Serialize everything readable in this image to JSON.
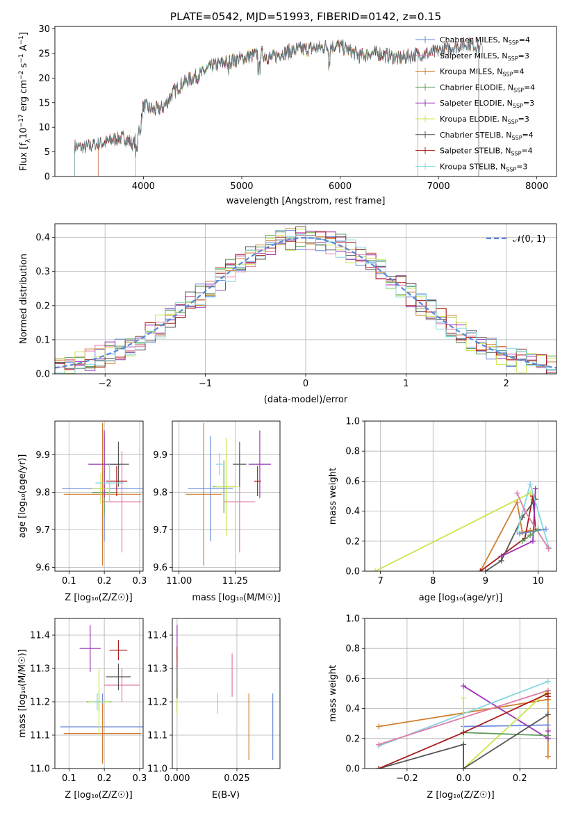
{
  "figure_title": "PLATE=0542, MJD=51993, FIBERID=0142, z=0.15",
  "colors": {
    "Chabrier MILES": "#6688dd",
    "Salpeter MILES": "#e07aa8",
    "Kroupa MILES": "#d27d2d",
    "Chabrier ELODIE": "#5f9e5f",
    "Salpeter ELODIE": "#9b34b5",
    "Kroupa ELODIE": "#c8e64a",
    "Chabrier STELIB": "#555555",
    "Salpeter STELIB": "#a81c1c",
    "Kroupa STELIB": "#84d6e0"
  },
  "chart_data": [
    {
      "id": "spectrum",
      "type": "line",
      "title": "PLATE=0542, MJD=51993, FIBERID=0142, z=0.15",
      "xlabel": "wavelength [Angstrom, rest frame]",
      "ylabel": "Flux [f_λ 10^-17 erg cm^-2 s^-1 A^-1]",
      "xlim": [
        3100,
        8200
      ],
      "ylim": [
        0,
        30.5
      ],
      "xticks": [
        4000,
        5000,
        6000,
        7000,
        8000
      ],
      "yticks": [
        0,
        5,
        10,
        15,
        20,
        25,
        30
      ],
      "grid": false,
      "legend_position": "top-right",
      "observed_spectrum": {
        "x": [
          3300,
          3400,
          3500,
          3600,
          3700,
          3800,
          3900,
          3950,
          4000,
          4100,
          4200,
          4300,
          4400,
          4500,
          4600,
          4700,
          4800,
          4900,
          5000,
          5100,
          5200,
          5300,
          5400,
          5500,
          5600,
          5700,
          5800,
          5900,
          6000,
          6100,
          6200,
          6300,
          6400,
          6500,
          6600,
          6700,
          6800,
          6900,
          7000,
          7100,
          7200,
          7300,
          7400,
          7450
        ],
        "y": [
          6.0,
          5.8,
          6.5,
          6.8,
          7.5,
          8.0,
          6.5,
          9.5,
          14.5,
          13.5,
          14.0,
          17.0,
          19.0,
          20.0,
          21.0,
          22.5,
          23.0,
          23.5,
          24.0,
          24.5,
          25.0,
          24.0,
          25.0,
          25.5,
          25.8,
          26.0,
          26.2,
          26.5,
          26.5,
          25.5,
          24.5,
          25.0,
          25.0,
          24.5,
          24.0,
          24.5,
          24.8,
          25.0,
          25.5,
          26.0,
          26.5,
          27.0,
          26.5,
          26.0
        ]
      },
      "series": [
        {
          "name": "Chabrier MILES, N_SSP=4",
          "x_start": 3540,
          "x_end": 7410
        },
        {
          "name": "Salpeter MILES, N_SSP=3",
          "x_start": 3540,
          "x_end": 7410
        },
        {
          "name": "Kroupa MILES, N_SSP=4",
          "x_start": 3540,
          "x_end": 7410
        },
        {
          "name": "Chabrier ELODIE, N_SSP=4",
          "x_start": 3920,
          "x_end": 6790
        },
        {
          "name": "Salpeter ELODIE, N_SSP=3",
          "x_start": 3920,
          "x_end": 6790
        },
        {
          "name": "Kroupa ELODIE, N_SSP=3",
          "x_start": 3920,
          "x_end": 6790
        },
        {
          "name": "Chabrier STELIB, N_SSP=4",
          "x_start": 3300,
          "x_end": 7410
        },
        {
          "name": "Salpeter STELIB, N_SSP=4",
          "x_start": 3300,
          "x_end": 7410
        },
        {
          "name": "Kroupa STELIB, N_SSP=3",
          "x_start": 3300,
          "x_end": 7410
        }
      ]
    },
    {
      "id": "residuals",
      "type": "line",
      "xlabel": "(data-model)/error",
      "ylabel": "Normed distribution",
      "xlim": [
        -2.5,
        2.5
      ],
      "ylim": [
        0,
        0.44
      ],
      "xticks": [
        -2,
        -1,
        0,
        1,
        2
      ],
      "yticks": [
        0.0,
        0.1,
        0.2,
        0.3,
        0.4
      ],
      "grid": true,
      "legend": [
        {
          "name": "𝒩(0, 1)",
          "style": "dashed",
          "color": "#5588dd"
        }
      ],
      "legend_position": "top-right",
      "histogram_bin_width": 0.1
    },
    {
      "id": "age_vs_Z",
      "type": "scatter",
      "xlabel": "Z [log10(Z/Z☉)]",
      "ylabel": "age [log10(age/yr)]",
      "xlim": [
        0.06,
        0.31
      ],
      "ylim": [
        9.59,
        9.99
      ],
      "xticks": [
        0.1,
        0.2,
        0.3
      ],
      "yticks": [
        9.6,
        9.7,
        9.8,
        9.9
      ],
      "grid": true,
      "points": [
        {
          "model": "Chabrier MILES",
          "x": 0.2,
          "y": 9.81,
          "xerr": 0.12,
          "yerr": 0.14
        },
        {
          "model": "Salpeter MILES",
          "x": 0.25,
          "y": 9.775,
          "xerr": 0.055,
          "yerr": 0.135
        },
        {
          "model": "Kroupa MILES",
          "x": 0.195,
          "y": 9.795,
          "xerr": 0.11,
          "yerr": 0.19
        },
        {
          "model": "Chabrier ELODIE",
          "x": 0.2,
          "y": 9.8,
          "xerr": 0.035,
          "yerr": 0.06
        },
        {
          "model": "Salpeter ELODIE",
          "x": 0.2,
          "y": 9.875,
          "xerr": 0.045,
          "yerr": 0.09
        },
        {
          "model": "Kroupa ELODIE",
          "x": 0.19,
          "y": 9.81,
          "xerr": 0.025,
          "yerr": 0.04
        },
        {
          "model": "Chabrier STELIB",
          "x": 0.24,
          "y": 9.875,
          "xerr": 0.03,
          "yerr": 0.06
        },
        {
          "model": "Salpeter STELIB",
          "x": 0.235,
          "y": 9.83,
          "xerr": 0.03,
          "yerr": 0.04
        },
        {
          "model": "Kroupa STELIB",
          "x": 0.215,
          "y": 9.825,
          "xerr": 0.04,
          "yerr": 0.05
        }
      ]
    },
    {
      "id": "age_vs_mass",
      "type": "scatter",
      "xlabel": "mass [log10(M/M☉)]",
      "xlim": [
        10.97,
        11.45
      ],
      "ylim": [
        9.59,
        9.99
      ],
      "xticks": [
        11.0,
        11.25
      ],
      "yticks": [
        9.6,
        9.7,
        9.8,
        9.9
      ],
      "grid": true,
      "points": [
        {
          "model": "Chabrier MILES",
          "x": 11.14,
          "y": 9.81,
          "xerr": 0.1,
          "yerr": 0.14
        },
        {
          "model": "Salpeter MILES",
          "x": 11.27,
          "y": 9.775,
          "xerr": 0.07,
          "yerr": 0.135
        },
        {
          "model": "Kroupa MILES",
          "x": 11.11,
          "y": 9.795,
          "xerr": 0.08,
          "yerr": 0.19
        },
        {
          "model": "Chabrier ELODIE",
          "x": 11.2,
          "y": 9.815,
          "xerr": 0.05,
          "yerr": 0.07
        },
        {
          "model": "Salpeter ELODIE",
          "x": 11.36,
          "y": 9.875,
          "xerr": 0.05,
          "yerr": 0.09
        },
        {
          "model": "Kroupa ELODIE",
          "x": 11.21,
          "y": 9.815,
          "xerr": 0.05,
          "yerr": 0.13
        },
        {
          "model": "Chabrier STELIB",
          "x": 11.27,
          "y": 9.875,
          "xerr": 0.03,
          "yerr": 0.06
        },
        {
          "model": "Salpeter STELIB",
          "x": 11.35,
          "y": 9.83,
          "xerr": 0.015,
          "yerr": 0.04
        },
        {
          "model": "Kroupa STELIB",
          "x": 11.18,
          "y": 9.875,
          "xerr": 0.015,
          "yerr": 0.03
        }
      ]
    },
    {
      "id": "weight_vs_age",
      "type": "line",
      "xlabel": "age [log10(age/yr)]",
      "ylabel": "mass weight",
      "xlim": [
        6.7,
        10.35
      ],
      "ylim": [
        0,
        1.0
      ],
      "xticks": [
        7,
        8,
        9,
        10
      ],
      "yticks": [
        0.0,
        0.2,
        0.4,
        0.6,
        0.8,
        1.0
      ],
      "grid": true,
      "series": [
        {
          "model": "Kroupa ELODIE",
          "x": [
            6.9,
            9.85,
            9.9
          ],
          "y": [
            0.0,
            0.52,
            0.48
          ]
        },
        {
          "model": "Kroupa MILES",
          "x": [
            8.9,
            9.6,
            9.7,
            9.85
          ],
          "y": [
            0.0,
            0.46,
            0.26,
            0.27
          ]
        },
        {
          "model": "Salpeter STELIB",
          "x": [
            8.9,
            9.75,
            9.9,
            9.95
          ],
          "y": [
            0.0,
            0.22,
            0.5,
            0.28
          ]
        },
        {
          "model": "Chabrier STELIB",
          "x": [
            9.0,
            9.3,
            9.7,
            9.95
          ],
          "y": [
            0.0,
            0.07,
            0.36,
            0.48
          ]
        },
        {
          "model": "Salpeter ELODIE",
          "x": [
            9.3,
            9.9,
            9.95
          ],
          "y": [
            0.1,
            0.2,
            0.55
          ]
        },
        {
          "model": "Kroupa STELIB",
          "x": [
            9.6,
            9.85,
            10.2
          ],
          "y": [
            0.26,
            0.58,
            0.16
          ]
        },
        {
          "model": "Chabrier MILES",
          "x": [
            9.65,
            10.15
          ],
          "y": [
            0.25,
            0.28
          ]
        },
        {
          "model": "Salpeter MILES",
          "x": [
            9.6,
            9.75,
            10.2
          ],
          "y": [
            0.52,
            0.4,
            0.15
          ]
        },
        {
          "model": "Chabrier ELODIE",
          "x": [
            9.7,
            9.85,
            10.0
          ],
          "y": [
            0.2,
            0.24,
            0.28
          ]
        }
      ]
    },
    {
      "id": "mass_vs_Z",
      "type": "scatter",
      "xlabel": "Z [log10(Z/Z☉)]",
      "ylabel": "mass [log10(M/M☉)]",
      "xlim": [
        0.06,
        0.31
      ],
      "ylim": [
        11.0,
        11.45
      ],
      "xticks": [
        0.1,
        0.2,
        0.3
      ],
      "yticks": [
        11.0,
        11.1,
        11.2,
        11.3,
        11.4
      ],
      "grid": true,
      "points": [
        {
          "model": "Chabrier MILES",
          "x": 0.195,
          "y": 11.125,
          "xerr": 0.12,
          "yerr": 0.1
        },
        {
          "model": "Salpeter MILES",
          "x": 0.25,
          "y": 11.25,
          "xerr": 0.05,
          "yerr": 0.05
        },
        {
          "model": "Kroupa MILES",
          "x": 0.195,
          "y": 11.105,
          "xerr": 0.11,
          "yerr": 0.09
        },
        {
          "model": "Chabrier ELODIE",
          "x": 0.185,
          "y": 11.2,
          "xerr": 0.035,
          "yerr": 0.03
        },
        {
          "model": "Salpeter ELODIE",
          "x": 0.16,
          "y": 11.36,
          "xerr": 0.03,
          "yerr": 0.07
        },
        {
          "model": "Kroupa ELODIE",
          "x": 0.185,
          "y": 11.2,
          "xerr": 0.03,
          "yerr": 0.1
        },
        {
          "model": "Chabrier STELIB",
          "x": 0.24,
          "y": 11.275,
          "xerr": 0.035,
          "yerr": 0.04
        },
        {
          "model": "Salpeter STELIB",
          "x": 0.24,
          "y": 11.355,
          "xerr": 0.025,
          "yerr": 0.03
        },
        {
          "model": "Kroupa STELIB",
          "x": 0.18,
          "y": 11.2,
          "xerr": 0.01,
          "yerr": 0.025
        }
      ]
    },
    {
      "id": "mass_vs_ebv",
      "type": "scatter",
      "xlabel": "E(B-V)",
      "xlim": [
        -0.002,
        0.043
      ],
      "ylim": [
        11.0,
        11.45
      ],
      "xticks": [
        0.0,
        0.025
      ],
      "yticks": [
        11.0,
        11.1,
        11.2,
        11.3,
        11.4
      ],
      "grid": true,
      "points": [
        {
          "model": "Chabrier MILES",
          "x": 0.04,
          "y": 11.125,
          "xerr": 0.0,
          "yerr": 0.1
        },
        {
          "model": "Salpeter MILES",
          "x": 0.023,
          "y": 11.28,
          "xerr": 0.0,
          "yerr": 0.065
        },
        {
          "model": "Kroupa MILES",
          "x": 0.03,
          "y": 11.125,
          "xerr": 0.0,
          "yerr": 0.1
        },
        {
          "model": "Chabrier ELODIE",
          "x": 0.0,
          "y": 11.2,
          "xerr": 0.0,
          "yerr": 0.03
        },
        {
          "model": "Salpeter ELODIE",
          "x": 0.0,
          "y": 11.38,
          "xerr": 0.0,
          "yerr": 0.05
        },
        {
          "model": "Kroupa ELODIE",
          "x": 0.0,
          "y": 11.21,
          "xerr": 0.0,
          "yerr": 0.05
        },
        {
          "model": "Chabrier STELIB",
          "x": 0.0,
          "y": 11.26,
          "xerr": 0.0,
          "yerr": 0.05
        },
        {
          "model": "Salpeter STELIB",
          "x": 0.0,
          "y": 11.335,
          "xerr": 0.0,
          "yerr": 0.03
        },
        {
          "model": "Kroupa STELIB",
          "x": 0.017,
          "y": 11.195,
          "xerr": 0.0,
          "yerr": 0.03
        }
      ]
    },
    {
      "id": "weight_vs_Z",
      "type": "line",
      "xlabel": "Z [log10(Z/Z☉)]",
      "ylabel": "mass weight",
      "xlim": [
        -0.35,
        0.33
      ],
      "ylim": [
        0,
        1.0
      ],
      "xticks": [
        -0.2,
        0.0,
        0.2
      ],
      "yticks": [
        0.0,
        0.2,
        0.4,
        0.6,
        0.8,
        1.0
      ],
      "grid": true,
      "series": [
        {
          "model": "Kroupa MILES",
          "x": [
            -0.3,
            0.3,
            0.3
          ],
          "y": [
            0.28,
            0.46,
            0.08
          ]
        },
        {
          "model": "Chabrier MILES",
          "x": [
            0.0,
            0.3
          ],
          "y": [
            0.28,
            0.29
          ]
        },
        {
          "model": "Salpeter ELODIE",
          "x": [
            0.0,
            0.3,
            0.3
          ],
          "y": [
            0.55,
            0.2,
            0.25
          ]
        },
        {
          "model": "Kroupa ELODIE",
          "x": [
            0.0,
            0.0,
            0.3,
            0.3
          ],
          "y": [
            0.47,
            0.0,
            0.52,
            0.5
          ]
        },
        {
          "model": "Kroupa STELIB",
          "x": [
            -0.3,
            0.3
          ],
          "y": [
            0.15,
            0.58
          ]
        },
        {
          "model": "Salpeter MILES",
          "x": [
            -0.3,
            0.3
          ],
          "y": [
            0.16,
            0.52
          ]
        },
        {
          "model": "Chabrier ELODIE",
          "x": [
            0.0,
            0.3
          ],
          "y": [
            0.24,
            0.22
          ]
        },
        {
          "model": "Chabrier STELIB",
          "x": [
            -0.3,
            0.0,
            0.0,
            0.3
          ],
          "y": [
            0.0,
            0.16,
            0.0,
            0.36
          ]
        },
        {
          "model": "Salpeter STELIB",
          "x": [
            -0.3,
            0.0,
            0.3,
            0.3
          ],
          "y": [
            0.0,
            0.24,
            0.5,
            0.48
          ]
        }
      ]
    }
  ],
  "legend_labels": [
    {
      "label": "Chabrier MILES, N",
      "sub": "SSP",
      "tail": "=4",
      "model": "Chabrier MILES"
    },
    {
      "label": "Salpeter MILES, N",
      "sub": "SSP",
      "tail": "=3",
      "model": "Salpeter MILES"
    },
    {
      "label": "Kroupa MILES, N",
      "sub": "SSP",
      "tail": "=4",
      "model": "Kroupa MILES"
    },
    {
      "label": "Chabrier ELODIE, N",
      "sub": "SSP",
      "tail": "=4",
      "model": "Chabrier ELODIE"
    },
    {
      "label": "Salpeter ELODIE, N",
      "sub": "SSP",
      "tail": "=3",
      "model": "Salpeter ELODIE"
    },
    {
      "label": "Kroupa ELODIE, N",
      "sub": "SSP",
      "tail": "=3",
      "model": "Kroupa ELODIE"
    },
    {
      "label": "Chabrier STELIB, N",
      "sub": "SSP",
      "tail": "=4",
      "model": "Chabrier STELIB"
    },
    {
      "label": "Salpeter STELIB, N",
      "sub": "SSP",
      "tail": "=4",
      "model": "Salpeter STELIB"
    },
    {
      "label": "Kroupa STELIB, N",
      "sub": "SSP",
      "tail": "=3",
      "model": "Kroupa STELIB"
    }
  ]
}
